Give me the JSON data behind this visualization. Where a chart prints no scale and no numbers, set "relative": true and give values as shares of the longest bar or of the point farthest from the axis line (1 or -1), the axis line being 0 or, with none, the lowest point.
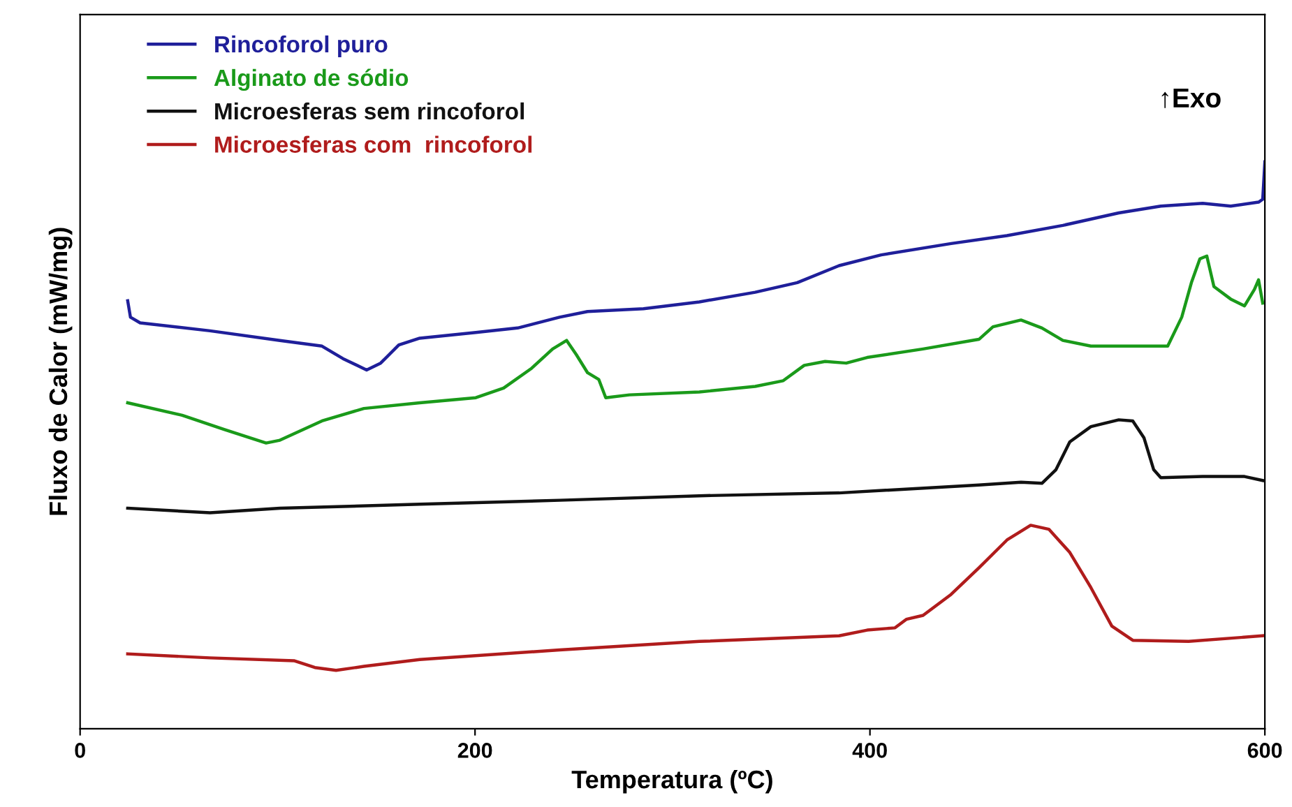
{
  "chart_data": {
    "type": "line",
    "relative": true,
    "xlabel": "Temperatura (ºC)",
    "ylabel": "Fluxo de Calor (mW/mg)",
    "xlim": [
      0,
      600
    ],
    "xticks": [
      0,
      200,
      400,
      600
    ],
    "grid": false,
    "legend": "top left",
    "marker": "none",
    "line_style": "solid",
    "annotations": [
      "↑Exo"
    ],
    "series": [
      {
        "name": "Rincoforol puro",
        "color": "#1f1f9a",
        "x": [
          24.1,
          25.5,
          30.4,
          65.8,
          101.2,
          122.5,
          133.1,
          145.1,
          152.2,
          161.4,
          172.0,
          200.4,
          221.6,
          242.8,
          257.0,
          285.3,
          313.6,
          341.9,
          363.2,
          384.4,
          405.7,
          441.1,
          469.4,
          497.7,
          526.0,
          547.3,
          568.5,
          582.7,
          596.8,
          598.9,
          600
        ],
        "values": [
          0.755,
          0.726,
          0.716,
          0.702,
          0.685,
          0.675,
          0.653,
          0.633,
          0.645,
          0.677,
          0.689,
          0.699,
          0.707,
          0.726,
          0.736,
          0.741,
          0.753,
          0.77,
          0.787,
          0.817,
          0.836,
          0.856,
          0.87,
          0.888,
          0.91,
          0.922,
          0.927,
          0.922,
          0.929,
          0.934,
          1
        ]
      },
      {
        "name": "Alginato de sódio",
        "color": "#1a9a1a",
        "x": [
          24.1,
          51.7,
          72.9,
          94.2,
          101.2,
          122.5,
          143.7,
          172.0,
          200.4,
          214.5,
          228.7,
          239.3,
          246.4,
          251.3,
          257.0,
          262.7,
          266.2,
          278.2,
          313.6,
          341.9,
          356.1,
          366.7,
          377.3,
          388.0,
          398.6,
          426.9,
          455.2,
          462.3,
          476.5,
          487.1,
          497.7,
          511.9,
          550.8,
          557.9,
          562.8,
          567.1,
          570.6,
          574.2,
          582.7,
          589.7,
          594.7,
          596.8,
          598.9
        ],
        "values": [
          0.575,
          0.553,
          0.528,
          0.504,
          0.509,
          0.543,
          0.565,
          0.575,
          0.584,
          0.601,
          0.636,
          0.67,
          0.685,
          0.66,
          0.628,
          0.616,
          0.584,
          0.589,
          0.594,
          0.604,
          0.614,
          0.641,
          0.648,
          0.645,
          0.655,
          0.67,
          0.687,
          0.709,
          0.721,
          0.707,
          0.685,
          0.675,
          0.675,
          0.726,
          0.787,
          0.829,
          0.834,
          0.78,
          0.758,
          0.746,
          0.775,
          0.792,
          0.751
        ]
      },
      {
        "name": "Microesferas sem rincoforol",
        "color": "#111111",
        "x": [
          24.1,
          65.8,
          101.2,
          172.0,
          242.8,
          313.6,
          384.4,
          455.2,
          476.5,
          487.1,
          494.2,
          501.2,
          511.9,
          526.0,
          533.1,
          538.8,
          543.7,
          547.3,
          568.5,
          589.7,
          598.9
        ],
        "values": [
          0.389,
          0.381,
          0.389,
          0.396,
          0.403,
          0.411,
          0.416,
          0.43,
          0.435,
          0.433,
          0.457,
          0.506,
          0.533,
          0.545,
          0.543,
          0.513,
          0.457,
          0.443,
          0.445,
          0.445,
          0.438
        ]
      },
      {
        "name": "Microesferas com  rincoforol",
        "color": "#b01c1c",
        "x": [
          24.1,
          65.8,
          108.3,
          118.9,
          129.6,
          143.7,
          172.0,
          242.8,
          313.6,
          384.4,
          398.6,
          412.7,
          418.4,
          426.9,
          441.1,
          455.2,
          469.4,
          481.4,
          490.6,
          501.2,
          511.9,
          522.5,
          533.1,
          561.4,
          598.9
        ],
        "values": [
          0.132,
          0.125,
          0.12,
          0.108,
          0.103,
          0.11,
          0.122,
          0.139,
          0.154,
          0.164,
          0.174,
          0.178,
          0.193,
          0.2,
          0.237,
          0.284,
          0.333,
          0.359,
          0.352,
          0.311,
          0.249,
          0.181,
          0.156,
          0.154,
          0.164
        ]
      }
    ]
  }
}
